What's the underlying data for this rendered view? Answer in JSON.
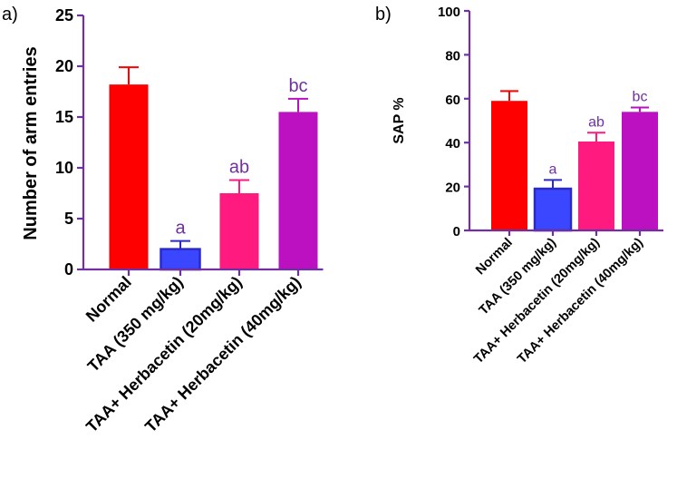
{
  "chart_data": [
    {
      "type": "bar",
      "panel": "a)",
      "categories": [
        "Normal",
        "TAA (350 mg/kg)",
        "TAA+ Herbacetin (20mg/kg)",
        "TAA+ Herbacetin (40mg/kg)"
      ],
      "values": [
        18.2,
        2.0,
        7.5,
        15.5
      ],
      "errors": [
        1.7,
        0.8,
        1.3,
        1.3
      ],
      "significance": [
        "",
        "a",
        "ab",
        "bc"
      ],
      "colors": [
        "#ff0000",
        "#3b46ff",
        "#ff1a80",
        "#bb11c0"
      ],
      "ylabel": "Number of arm entries",
      "ylim": [
        0,
        25
      ],
      "yticks": [
        0,
        5,
        10,
        15,
        20,
        25
      ],
      "xlabel": ""
    },
    {
      "type": "bar",
      "panel": "b)",
      "categories": [
        "Normal",
        "TAA (350 mg/kg)",
        "TAA+ Herbacetin (20mg/kg)",
        "TAA+ Herbacetin (40mg/kg)"
      ],
      "values": [
        59,
        19,
        40.5,
        54
      ],
      "errors": [
        4.5,
        4,
        4,
        2
      ],
      "significance": [
        "",
        "a",
        "ab",
        "bc"
      ],
      "colors": [
        "#ff0000",
        "#3b46ff",
        "#ff1a80",
        "#bb11c0"
      ],
      "ylabel": "SAP %",
      "ylim": [
        0,
        100
      ],
      "yticks": [
        0,
        20,
        40,
        60,
        80,
        100
      ],
      "xlabel": ""
    }
  ]
}
